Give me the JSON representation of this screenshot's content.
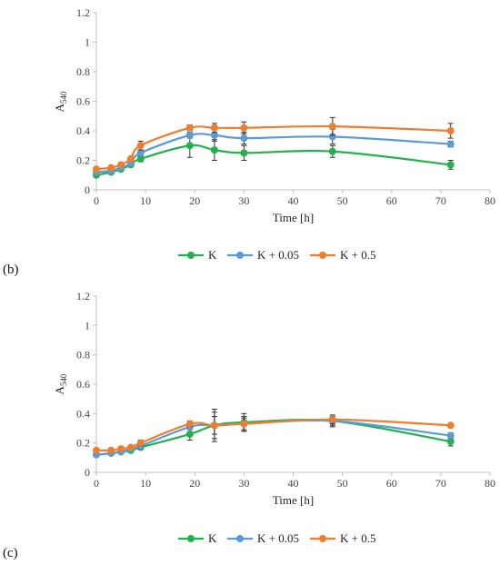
{
  "colors": {
    "K": "#22b14c",
    "K + 0.05": "#5b9bd5",
    "K + 0.5": "#ed7d31"
  },
  "chart_data": [
    {
      "type": "line",
      "panel_label": "(b)",
      "xlabel": "Time [h]",
      "ylabel_main": "A",
      "ylabel_sub": "540",
      "xlim": [
        0,
        80
      ],
      "ylim": [
        0,
        1.2
      ],
      "x_ticks": [
        "0",
        "10",
        "20",
        "30",
        "40",
        "50",
        "60",
        "70",
        "80"
      ],
      "y_ticks": [
        "0",
        "0.2",
        "0.4",
        "0.6",
        "0.8",
        "1",
        "1.2"
      ],
      "legend_position": "bottom",
      "x": [
        0,
        3,
        5,
        7,
        9,
        19,
        24,
        30,
        48,
        72
      ],
      "series": [
        {
          "name": "K",
          "values": [
            0.1,
            0.12,
            0.14,
            0.17,
            0.21,
            0.3,
            0.27,
            0.25,
            0.26,
            0.17
          ],
          "errors": [
            0.01,
            0.01,
            0.01,
            0.01,
            0.02,
            0.08,
            0.07,
            0.05,
            0.04,
            0.03
          ]
        },
        {
          "name": "K + 0.05",
          "values": [
            0.12,
            0.13,
            0.15,
            0.18,
            0.25,
            0.37,
            0.37,
            0.35,
            0.36,
            0.31
          ],
          "errors": [
            0.01,
            0.01,
            0.01,
            0.01,
            0.02,
            0.02,
            0.04,
            0.04,
            0.05,
            0.02
          ]
        },
        {
          "name": "K + 0.5",
          "values": [
            0.14,
            0.15,
            0.17,
            0.21,
            0.3,
            0.42,
            0.42,
            0.42,
            0.43,
            0.4
          ],
          "errors": [
            0.01,
            0.01,
            0.01,
            0.01,
            0.03,
            0.02,
            0.03,
            0.04,
            0.06,
            0.05
          ]
        }
      ]
    },
    {
      "type": "line",
      "panel_label": "(c)",
      "xlabel": "Time [h]",
      "ylabel_main": "A",
      "ylabel_sub": "540",
      "xlim": [
        0,
        80
      ],
      "ylim": [
        0,
        1.2
      ],
      "x_ticks": [
        "0",
        "10",
        "20",
        "30",
        "40",
        "50",
        "60",
        "70",
        "80"
      ],
      "y_ticks": [
        "0",
        "0.2",
        "0.4",
        "0.6",
        "0.8",
        "1",
        "1.2"
      ],
      "legend_position": "bottom",
      "x": [
        0,
        3,
        5,
        7,
        9,
        19,
        24,
        30,
        48,
        72
      ],
      "series": [
        {
          "name": "K",
          "values": [
            0.12,
            0.13,
            0.14,
            0.15,
            0.17,
            0.26,
            0.32,
            0.34,
            0.35,
            0.21
          ],
          "errors": [
            0.01,
            0.01,
            0.01,
            0.01,
            0.01,
            0.04,
            0.09,
            0.06,
            0.03,
            0.03
          ]
        },
        {
          "name": "K + 0.05",
          "values": [
            0.12,
            0.13,
            0.14,
            0.16,
            0.18,
            0.31,
            0.32,
            0.33,
            0.35,
            0.25
          ],
          "errors": [
            0.01,
            0.01,
            0.01,
            0.01,
            0.02,
            0.02,
            0.06,
            0.05,
            0.04,
            0.02
          ]
        },
        {
          "name": "K + 0.5",
          "values": [
            0.15,
            0.15,
            0.16,
            0.17,
            0.2,
            0.33,
            0.32,
            0.33,
            0.36,
            0.32
          ],
          "errors": [
            0.01,
            0.01,
            0.01,
            0.01,
            0.02,
            0.02,
            0.11,
            0.04,
            0.03,
            0.01
          ]
        }
      ]
    }
  ]
}
